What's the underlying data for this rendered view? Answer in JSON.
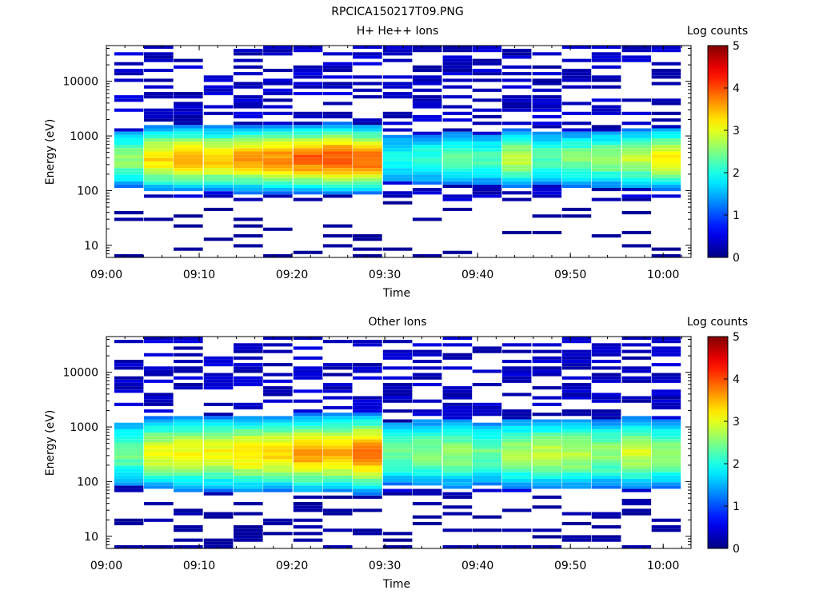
{
  "figure_title": "RPCICA150217T09.PNG",
  "chart_data": [
    {
      "type": "heatmap",
      "title": "H+ He++ Ions",
      "xlabel": "Time",
      "ylabel": "Energy (eV)",
      "yscale": "log",
      "ylim": [
        6,
        45000
      ],
      "xlim": [
        "09:00",
        "10:03"
      ],
      "x_ticks": [
        "09:00",
        "09:10",
        "09:20",
        "09:30",
        "09:40",
        "09:50",
        "10:00"
      ],
      "y_ticks": [
        "10",
        "100",
        "1000",
        "10000"
      ],
      "colorbar": {
        "label": "Log counts",
        "range": [
          0,
          5
        ],
        "ticks": [
          "0",
          "1",
          "2",
          "3",
          "4",
          "5"
        ]
      },
      "columns_start_min": [
        0.85,
        4.05,
        7.25,
        10.5,
        13.7,
        16.9,
        20.15,
        23.35,
        26.55,
        29.8,
        33.0,
        36.25,
        39.45,
        42.65,
        45.9,
        49.1,
        52.3,
        55.55,
        58.75
      ],
      "column_width_min": 3.15,
      "core_peak_log_counts": [
        2.6,
        3.3,
        3.5,
        3.4,
        3.6,
        3.7,
        3.9,
        4.0,
        3.9,
        2.0,
        2.1,
        2.3,
        2.2,
        2.8,
        2.3,
        2.5,
        2.6,
        2.8,
        3.2
      ]
    },
    {
      "type": "heatmap",
      "title": "Other Ions",
      "xlabel": "Time",
      "ylabel": "Energy (eV)",
      "yscale": "log",
      "ylim": [
        6,
        45000
      ],
      "xlim": [
        "09:00",
        "10:03"
      ],
      "x_ticks": [
        "09:00",
        "09:10",
        "09:20",
        "09:30",
        "09:40",
        "09:50",
        "10:00"
      ],
      "y_ticks": [
        "10",
        "100",
        "1000",
        "10000"
      ],
      "colorbar": {
        "label": "Log counts",
        "range": [
          0,
          5
        ],
        "ticks": [
          "0",
          "1",
          "2",
          "3",
          "4",
          "5"
        ]
      },
      "columns_start_min": [
        0.85,
        4.05,
        7.25,
        10.5,
        13.7,
        16.9,
        20.15,
        23.35,
        26.55,
        29.8,
        33.0,
        36.25,
        39.45,
        42.65,
        45.9,
        49.1,
        52.3,
        55.55,
        58.75
      ],
      "column_width_min": 3.15,
      "core_peak_log_counts": [
        2.4,
        3.0,
        3.1,
        3.1,
        3.3,
        3.3,
        3.6,
        3.5,
        3.8,
        2.4,
        2.5,
        2.6,
        2.4,
        2.7,
        2.8,
        2.8,
        2.6,
        2.9,
        2.6
      ]
    }
  ]
}
